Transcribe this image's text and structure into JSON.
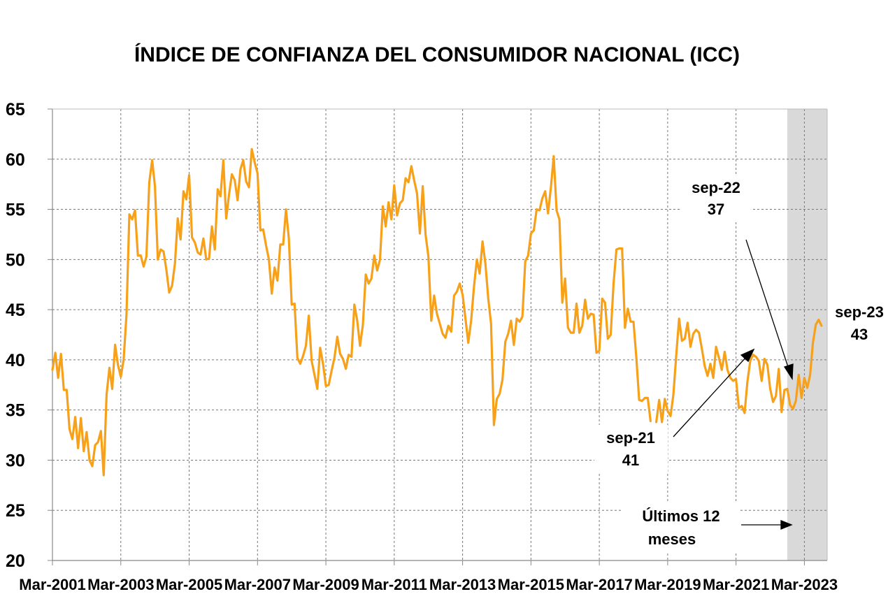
{
  "chart_data": {
    "type": "line",
    "title": "ÍNDICE DE CONFIANZA DEL CONSUMIDOR NACIONAL (ICC)",
    "xlabel": "",
    "ylabel": "",
    "ylim": [
      20,
      65
    ],
    "y_ticks": [
      20,
      25,
      30,
      35,
      40,
      45,
      50,
      55,
      60,
      65
    ],
    "x_tick_labels": [
      "Mar-2001",
      "Mar-2003",
      "Mar-2005",
      "Mar-2007",
      "Mar-2009",
      "Mar-2011",
      "Mar-2013",
      "Mar-2015",
      "Mar-2017",
      "Mar-2019",
      "Mar-2021",
      "Mar-2023"
    ],
    "x_range": [
      "2001-03",
      "2023-11"
    ],
    "grid": true,
    "line_color": "#F7A11A",
    "shade_color": "#D9D9D9",
    "shaded_region": {
      "start": "2022-09",
      "end": "2023-11",
      "label": "Últimos 12 meses"
    },
    "series": [
      {
        "x_start": "2001-03",
        "frequency": "monthly",
        "values": [
          39,
          40.7,
          38.2,
          40.6,
          37,
          37,
          33.1,
          32.1,
          34.3,
          31.2,
          34.2,
          30.9,
          32.8,
          30,
          29.4,
          31.5,
          31.8,
          32.9,
          28.5,
          36.5,
          39.2,
          37.1,
          41.5,
          39.5,
          38.3,
          40,
          44.5,
          54.5,
          54,
          54.9,
          50.4,
          50.4,
          49.3,
          50.3,
          57.7,
          59.9,
          57.3,
          50,
          51,
          50.8,
          49,
          46.7,
          47.4,
          49.6,
          54.1,
          52,
          56.8,
          56,
          58.4,
          52.2,
          51.7,
          50.7,
          50.5,
          52.1,
          50,
          50.1,
          53.3,
          51,
          57,
          56.3,
          59.9,
          54.1,
          56.5,
          58.5,
          57.9,
          55.9,
          59,
          59.9,
          57.8,
          57.2,
          61,
          59.7,
          58.6,
          52.9,
          53,
          51.4,
          50,
          46.6,
          49.2,
          47.9,
          51.5,
          51.5,
          55,
          52.1,
          45.5,
          45.6,
          40.2,
          39.6,
          40.4,
          41.4,
          44.4,
          39.9,
          38.5,
          37.1,
          41.2,
          39.6,
          37.4,
          37.5,
          38.9,
          40.2,
          42.3,
          40.6,
          40.1,
          39.1,
          40.5,
          40.3,
          45.5,
          43.9,
          41.4,
          43.5,
          48.5,
          47.6,
          48.1,
          50.4,
          48.9,
          50,
          55.3,
          53.3,
          55.7,
          54,
          57.4,
          54.4,
          55.6,
          55.9,
          58.1,
          57.7,
          59.3,
          57.9,
          56.6,
          52.6,
          57.3,
          52.5,
          50.3,
          43.9,
          46.4,
          44.6,
          43.6,
          42.6,
          42.2,
          43.4,
          42.8,
          46.4,
          46.8,
          47.6,
          46.5,
          44.1,
          41.7,
          43.9,
          47.3,
          50,
          48.6,
          51.8,
          49.6,
          46.1,
          43.6,
          33.5,
          36.1,
          36.6,
          38,
          41.8,
          42.6,
          43.9,
          41.5,
          44.1,
          43.8,
          44.3,
          49.8,
          50.4,
          52.6,
          52.9,
          55,
          54.9,
          56.1,
          56.8,
          54.6,
          57.2,
          60.3,
          54.9,
          54,
          45.7,
          48.1,
          43.2,
          42.7,
          42.7,
          45.6,
          42.7,
          43.4,
          46,
          44.1,
          44.6,
          44.5,
          40.7,
          40.9,
          46.1,
          45.7,
          42.1,
          42.5,
          47.6,
          51,
          51.1,
          51.1,
          43.2,
          45.1,
          43.8,
          43.8,
          40.2,
          36,
          35.9,
          36.2,
          36.2,
          33.9,
          null,
          33.8,
          36,
          33.8,
          36.1,
          34.9,
          34.4,
          36.5,
          40.4,
          44.1,
          41.9,
          42.1,
          43.7,
          41.3,
          42.6,
          43,
          42.7,
          41.1,
          39.4,
          38.4,
          39.6,
          38.2,
          41.3,
          40.2,
          39,
          40.8,
          39,
          38.2,
          37.9,
          38.1,
          35.2,
          35.4,
          34.7,
          37.8,
          39.9,
          40.5,
          40.3,
          39.9,
          37.9,
          40.1,
          39.5,
          37.1,
          35.8,
          36.4,
          39.1,
          34.8,
          37,
          37.1,
          35.5,
          35.1,
          35.9,
          38.5,
          36.2,
          38.2,
          37.2,
          38.5,
          41.7,
          43.5,
          44,
          43.4
        ]
      }
    ],
    "annotations": [
      {
        "id": "sep21",
        "line1": "sep-21",
        "line2": "41"
      },
      {
        "id": "sep22",
        "line1": "sep-22",
        "line2": "37"
      },
      {
        "id": "sep23",
        "line1": "sep-23",
        "line2": "43"
      },
      {
        "id": "last12",
        "line1": "Últimos 12",
        "line2": "meses"
      }
    ]
  }
}
